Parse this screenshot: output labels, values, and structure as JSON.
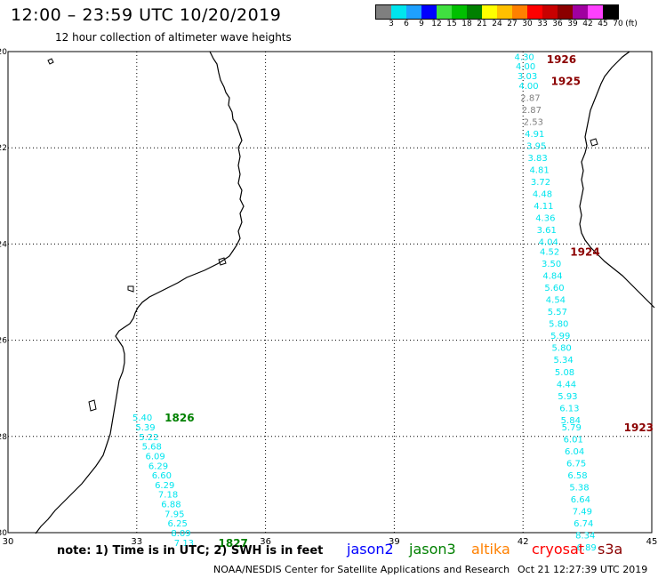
{
  "header": {
    "title": "12:00 – 23:59 UTC 10/20/2019",
    "subtitle": "12 hour collection of altimeter wave heights"
  },
  "legend": {
    "unit": "(ft)",
    "items": [
      {
        "label": "3",
        "color": "#7f7f7f"
      },
      {
        "label": "6",
        "color": "#00e5ee"
      },
      {
        "label": "9",
        "color": "#1ea0ff"
      },
      {
        "label": "12",
        "color": "#0000ff"
      },
      {
        "label": "15",
        "color": "#40e040"
      },
      {
        "label": "18",
        "color": "#00c000"
      },
      {
        "label": "21",
        "color": "#008000"
      },
      {
        "label": "24",
        "color": "#ffff00"
      },
      {
        "label": "27",
        "color": "#ffc000"
      },
      {
        "label": "30",
        "color": "#ff8000"
      },
      {
        "label": "33",
        "color": "#ff0000"
      },
      {
        "label": "36",
        "color": "#c80000"
      },
      {
        "label": "39",
        "color": "#8b0000"
      },
      {
        "label": "42",
        "color": "#a000a0"
      },
      {
        "label": "45",
        "color": "#ff40ff"
      },
      {
        "label": "70",
        "color": "#000000"
      }
    ]
  },
  "axes": {
    "x_ticks": [
      "30",
      "33",
      "36",
      "39",
      "42",
      "45"
    ],
    "y_ticks": [
      "-20",
      "-22",
      "-24",
      "-26",
      "-28",
      "-30"
    ],
    "lon_values": [
      30,
      33,
      36,
      39,
      42,
      45
    ],
    "lat_values": [
      -20,
      -22,
      -24,
      -26,
      -28,
      -30
    ]
  },
  "tracks": [
    {
      "start_time": "1826",
      "end_time": "1827",
      "time_color": "#008000",
      "points": [
        {
          "lat": -27.6,
          "lon": 32.9,
          "swh": "5.40",
          "color": "#00e5ee"
        },
        {
          "lat": -27.8,
          "lon": 32.97,
          "swh": "5.39",
          "color": "#00e5ee"
        },
        {
          "lat": -28.0,
          "lon": 33.05,
          "swh": "5.22",
          "color": "#00e5ee"
        },
        {
          "lat": -28.2,
          "lon": 33.12,
          "swh": "5.68",
          "color": "#00e5ee"
        },
        {
          "lat": -28.4,
          "lon": 33.2,
          "swh": "6.09",
          "color": "#00e5ee"
        },
        {
          "lat": -28.6,
          "lon": 33.27,
          "swh": "6.29",
          "color": "#00e5ee"
        },
        {
          "lat": -28.8,
          "lon": 33.35,
          "swh": "6.60",
          "color": "#00e5ee"
        },
        {
          "lat": -29.0,
          "lon": 33.42,
          "swh": "6.29",
          "color": "#00e5ee"
        },
        {
          "lat": -29.2,
          "lon": 33.5,
          "swh": "7.18",
          "color": "#00e5ee"
        },
        {
          "lat": -29.4,
          "lon": 33.57,
          "swh": "6.88",
          "color": "#00e5ee"
        },
        {
          "lat": -29.6,
          "lon": 33.65,
          "swh": "7.95",
          "color": "#00e5ee"
        },
        {
          "lat": -29.8,
          "lon": 33.72,
          "swh": "6.25",
          "color": "#00e5ee"
        },
        {
          "lat": -30.0,
          "lon": 33.8,
          "swh": "8.09",
          "color": "#00e5ee"
        },
        {
          "lat": -30.2,
          "lon": 33.87,
          "swh": "7.13",
          "color": "#00e5ee"
        }
      ]
    },
    {
      "start_time": "1926",
      "end_time": "1923",
      "time_color": "#8b0000",
      "points": [
        {
          "lat": -20.1,
          "lon": 41.8,
          "swh": "4.30",
          "color": "#00e5ee"
        },
        {
          "lat": -20.3,
          "lon": 41.83,
          "swh": "4.00",
          "color": "#00e5ee"
        },
        {
          "lat": -20.5,
          "lon": 41.87,
          "swh": "3.03",
          "color": "#00e5ee"
        },
        {
          "lat": -20.7,
          "lon": 41.9,
          "swh": "4.00",
          "color": "#00e5ee"
        },
        {
          "lat": -20.95,
          "lon": 41.94,
          "swh": "2.87",
          "color": "#7f7f7f"
        },
        {
          "lat": -21.2,
          "lon": 41.97,
          "swh": "2.87",
          "color": "#7f7f7f"
        },
        {
          "lat": -21.45,
          "lon": 42.01,
          "swh": "2.53",
          "color": "#7f7f7f"
        },
        {
          "lat": -21.7,
          "lon": 42.04,
          "swh": "4.91",
          "color": "#00e5ee"
        },
        {
          "lat": -21.95,
          "lon": 42.08,
          "swh": "3.95",
          "color": "#00e5ee"
        },
        {
          "lat": -22.2,
          "lon": 42.11,
          "swh": "3.83",
          "color": "#00e5ee"
        },
        {
          "lat": -22.45,
          "lon": 42.15,
          "swh": "4.81",
          "color": "#00e5ee"
        },
        {
          "lat": -22.7,
          "lon": 42.18,
          "swh": "3.72",
          "color": "#00e5ee"
        },
        {
          "lat": -22.95,
          "lon": 42.22,
          "swh": "4.48",
          "color": "#00e5ee"
        },
        {
          "lat": -23.2,
          "lon": 42.25,
          "swh": "4.11",
          "color": "#00e5ee"
        },
        {
          "lat": -23.45,
          "lon": 42.29,
          "swh": "4.36",
          "color": "#00e5ee"
        },
        {
          "lat": -23.7,
          "lon": 42.32,
          "swh": "3.61",
          "color": "#00e5ee"
        },
        {
          "lat": -23.95,
          "lon": 42.36,
          "swh": "4.04",
          "color": "#00e5ee"
        },
        {
          "lat": -24.15,
          "lon": 42.39,
          "swh": "4.52",
          "color": "#00e5ee"
        },
        {
          "lat": -24.4,
          "lon": 42.43,
          "swh": "3.50",
          "color": "#00e5ee"
        },
        {
          "lat": -24.65,
          "lon": 42.46,
          "swh": "4.84",
          "color": "#00e5ee"
        },
        {
          "lat": -24.9,
          "lon": 42.5,
          "swh": "5.60",
          "color": "#00e5ee"
        },
        {
          "lat": -25.15,
          "lon": 42.53,
          "swh": "4.54",
          "color": "#00e5ee"
        },
        {
          "lat": -25.4,
          "lon": 42.57,
          "swh": "5.57",
          "color": "#00e5ee"
        },
        {
          "lat": -25.65,
          "lon": 42.6,
          "swh": "5.80",
          "color": "#00e5ee"
        },
        {
          "lat": -25.9,
          "lon": 42.64,
          "swh": "5.99",
          "color": "#00e5ee"
        },
        {
          "lat": -26.15,
          "lon": 42.67,
          "swh": "5.80",
          "color": "#00e5ee"
        },
        {
          "lat": -26.4,
          "lon": 42.71,
          "swh": "5.34",
          "color": "#00e5ee"
        },
        {
          "lat": -26.65,
          "lon": 42.74,
          "swh": "5.08",
          "color": "#00e5ee"
        },
        {
          "lat": -26.9,
          "lon": 42.78,
          "swh": "4.44",
          "color": "#00e5ee"
        },
        {
          "lat": -27.15,
          "lon": 42.81,
          "swh": "5.93",
          "color": "#00e5ee"
        },
        {
          "lat": -27.4,
          "lon": 42.85,
          "swh": "6.13",
          "color": "#00e5ee"
        },
        {
          "lat": -27.65,
          "lon": 42.88,
          "swh": "5.84",
          "color": "#00e5ee"
        },
        {
          "lat": -27.8,
          "lon": 42.9,
          "swh": "5.79",
          "color": "#00e5ee"
        },
        {
          "lat": -28.05,
          "lon": 42.94,
          "swh": "6.01",
          "color": "#00e5ee"
        },
        {
          "lat": -28.3,
          "lon": 42.97,
          "swh": "6.04",
          "color": "#00e5ee"
        },
        {
          "lat": -28.55,
          "lon": 43.01,
          "swh": "6.75",
          "color": "#00e5ee"
        },
        {
          "lat": -28.8,
          "lon": 43.04,
          "swh": "6.58",
          "color": "#00e5ee"
        },
        {
          "lat": -29.05,
          "lon": 43.08,
          "swh": "5.38",
          "color": "#00e5ee"
        },
        {
          "lat": -29.3,
          "lon": 43.11,
          "swh": "6.64",
          "color": "#00e5ee"
        },
        {
          "lat": -29.55,
          "lon": 43.15,
          "swh": "7.49",
          "color": "#00e5ee"
        },
        {
          "lat": -29.8,
          "lon": 43.18,
          "swh": "6.74",
          "color": "#00e5ee"
        },
        {
          "lat": -30.05,
          "lon": 43.22,
          "swh": "8.34",
          "color": "#00e5ee"
        },
        {
          "lat": -30.3,
          "lon": 43.25,
          "swh": "6.89",
          "color": "#00e5ee"
        }
      ]
    }
  ],
  "time_labels": [
    {
      "text": "1926",
      "lat": -20.15,
      "lon": 42.55,
      "color": "#8b0000"
    },
    {
      "text": "1925",
      "lat": -20.6,
      "lon": 42.65,
      "color": "#8b0000"
    },
    {
      "text": "1924",
      "lat": -24.15,
      "lon": 43.1,
      "color": "#8b0000"
    },
    {
      "text": "1923",
      "lat": -27.8,
      "lon": 44.35,
      "color": "#8b0000"
    },
    {
      "text": "1826",
      "lat": -27.6,
      "lon": 33.65,
      "color": "#008000"
    },
    {
      "text": "1827",
      "lat": -30.2,
      "lon": 34.9,
      "color": "#008000"
    }
  ],
  "footer": {
    "note": "note: 1) Time is in UTC; 2) SWH is in feet",
    "satellites": [
      {
        "name": "jason2",
        "color": "#0000ff"
      },
      {
        "name": "jason3",
        "color": "#008000"
      },
      {
        "name": "altika",
        "color": "#ff8000"
      },
      {
        "name": "cryosat",
        "color": "#ff0000"
      },
      {
        "name": "s3a",
        "color": "#8b0000"
      }
    ],
    "credit": "NOAA/NESDIS Center for Satellite Applications and Research",
    "timestamp": "Oct 21 12:27:39 UTC 2019"
  }
}
